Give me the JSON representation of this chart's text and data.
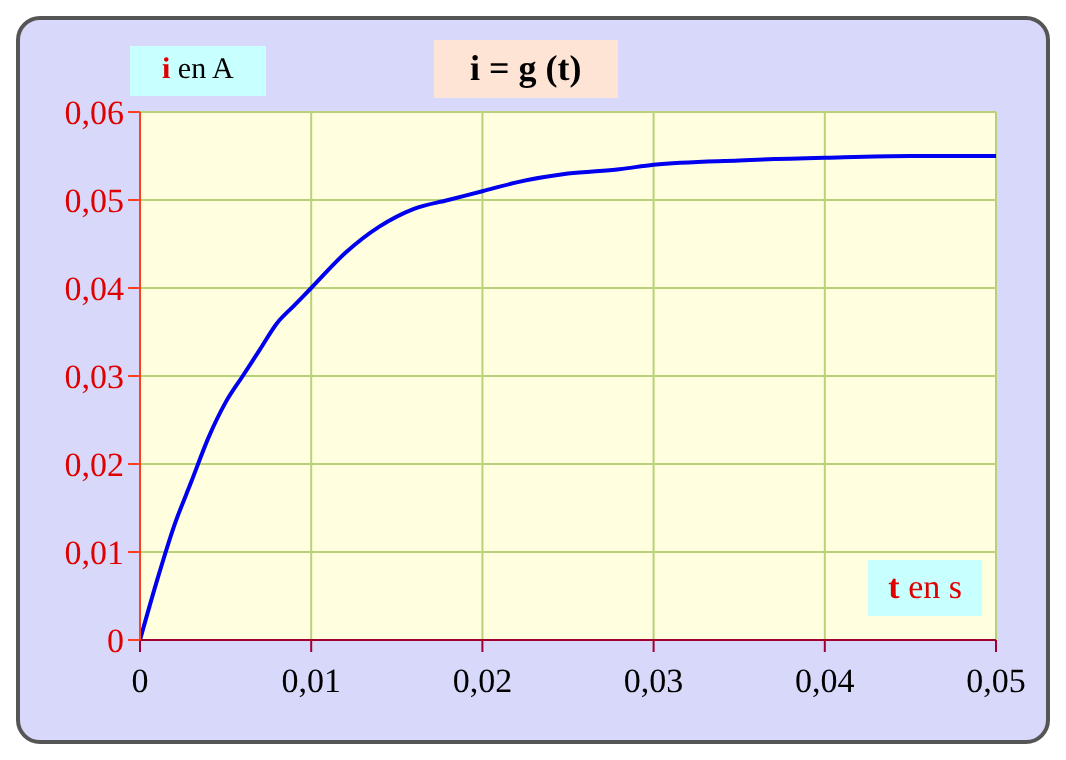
{
  "chart_data": {
    "type": "line",
    "title": "i = g (t)",
    "xlabel": "t en s",
    "ylabel": "i en A",
    "x": [
      0,
      0.001,
      0.002,
      0.003,
      0.004,
      0.005,
      0.006,
      0.007,
      0.008,
      0.009,
      0.01,
      0.012,
      0.014,
      0.016,
      0.018,
      0.02,
      0.022,
      0.025,
      0.028,
      0.03,
      0.035,
      0.04,
      0.045,
      0.05
    ],
    "series": [
      {
        "color": "#0000ee",
        "values": [
          0,
          0.0068,
          0.013,
          0.018,
          0.023,
          0.027,
          0.03,
          0.033,
          0.036,
          0.038,
          0.04,
          0.044,
          0.047,
          0.049,
          0.05,
          0.051,
          0.052,
          0.053,
          0.0535,
          0.054,
          0.0545,
          0.0548,
          0.055,
          0.055
        ]
      }
    ],
    "xlim": [
      0,
      0.05
    ],
    "ylim": [
      0,
      0.06
    ],
    "xticks": [
      0,
      {
        "value": 0.01,
        "label": "0,01"
      },
      {
        "value": 0.02,
        "label": "0,02"
      },
      {
        "value": 0.03,
        "label": "0,03"
      },
      {
        "value": 0.04,
        "label": "0,04"
      },
      {
        "value": 0.05,
        "label": "0,05"
      }
    ],
    "yticks": [
      0,
      {
        "value": 0.01,
        "label": "0,01"
      },
      {
        "value": 0.02,
        "label": "0,02"
      },
      {
        "value": 0.03,
        "label": "0,03"
      },
      {
        "value": 0.04,
        "label": "0,04"
      },
      {
        "value": 0.05,
        "label": "0,05"
      },
      {
        "value": 0.06,
        "label": "0,06"
      }
    ],
    "grid": true,
    "marker": "none",
    "line_style": "solid"
  }
}
